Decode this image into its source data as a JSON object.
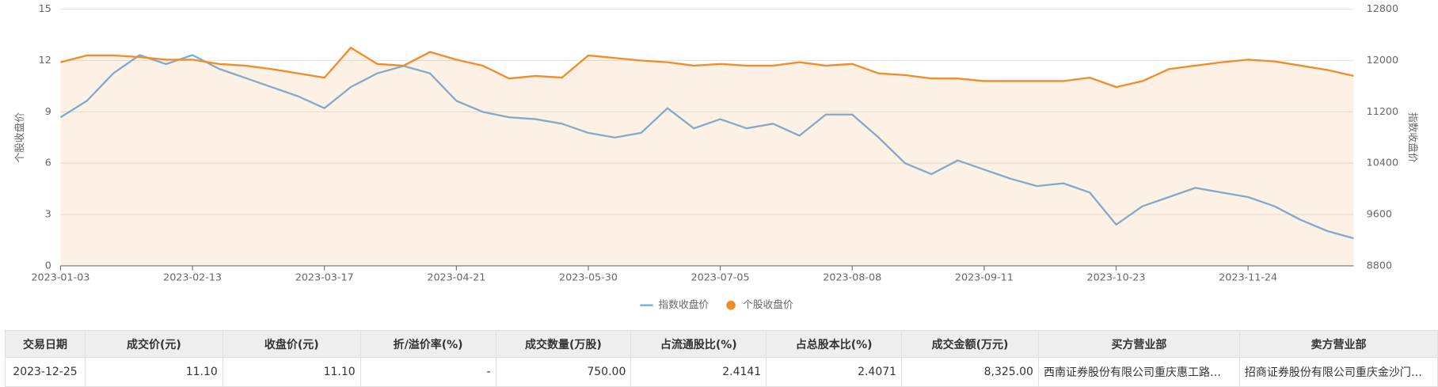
{
  "chart_data": {
    "type": "line",
    "categories": [
      "2023-01-03",
      null,
      null,
      null,
      null,
      "2023-02-13",
      null,
      null,
      null,
      null,
      "2023-03-17",
      null,
      null,
      null,
      null,
      "2023-04-21",
      null,
      null,
      null,
      null,
      "2023-05-30",
      null,
      null,
      null,
      null,
      "2023-07-05",
      null,
      null,
      null,
      null,
      "2023-08-08",
      null,
      null,
      null,
      null,
      "2023-09-11",
      null,
      null,
      null,
      null,
      "2023-10-23",
      null,
      null,
      null,
      null,
      "2023-11-24",
      null,
      null,
      null,
      null
    ],
    "series": [
      {
        "name": "指数收盘价",
        "color": "#73b0e0",
        "axis": "y2",
        "values": [
          11115,
          11372,
          11800,
          12086,
          11943,
          12086,
          11872,
          11729,
          11586,
          11443,
          11257,
          11586,
          11800,
          11915,
          11800,
          11372,
          11200,
          11115,
          11086,
          11015,
          10872,
          10800,
          10872,
          11257,
          10943,
          11086,
          10943,
          11015,
          10829,
          11158,
          11158,
          10800,
          10400,
          10229,
          10443,
          10300,
          10158,
          10043,
          10086,
          9943,
          9443,
          9729,
          9872,
          10015,
          9943,
          9872,
          9729,
          9515,
          9343,
          9229
        ]
      },
      {
        "name": "个股收盘价",
        "color": "#f28c28",
        "area": true,
        "values": [
          11.9,
          12.3,
          12.3,
          12.2,
          12.05,
          12.05,
          11.8,
          11.7,
          11.5,
          11.25,
          11.0,
          12.75,
          11.8,
          11.7,
          12.5,
          12.05,
          11.7,
          10.95,
          11.1,
          11.0,
          12.3,
          12.15,
          12.0,
          11.9,
          11.7,
          11.8,
          11.7,
          11.7,
          11.9,
          11.7,
          11.8,
          11.25,
          11.15,
          10.95,
          10.95,
          10.8,
          10.8,
          10.8,
          10.8,
          11.0,
          10.45,
          10.8,
          11.5,
          11.7,
          11.9,
          12.05,
          11.95,
          11.7,
          11.45,
          11.1
        ]
      }
    ],
    "ylabel": "个股收盘价",
    "y2label": "指数收盘价",
    "ylim": [
      0,
      15
    ],
    "yticks": [
      0,
      3,
      6,
      9,
      12,
      15
    ],
    "y2lim": [
      8800,
      12800
    ],
    "y2ticks": [
      8800,
      9600,
      10400,
      11200,
      12000,
      12800
    ],
    "grid": true,
    "legend": "bottom"
  },
  "table": {
    "headers": [
      "交易日期",
      "成交价(元)",
      "收盘价(元)",
      "折/溢价率(%)",
      "成交数量(万股)",
      "占流通股比(%)",
      "占总股本比(%)",
      "成交金额(万元)",
      "买方营业部",
      "卖方营业部"
    ],
    "rows": [
      [
        "2023-12-25",
        "11.10",
        "11.10",
        "-",
        "750.00",
        "2.4141",
        "2.4071",
        "8,325.00",
        "西南证券股份有限公司重庆惠工路…",
        "招商证券股份有限公司重庆金沙门…"
      ]
    ]
  }
}
